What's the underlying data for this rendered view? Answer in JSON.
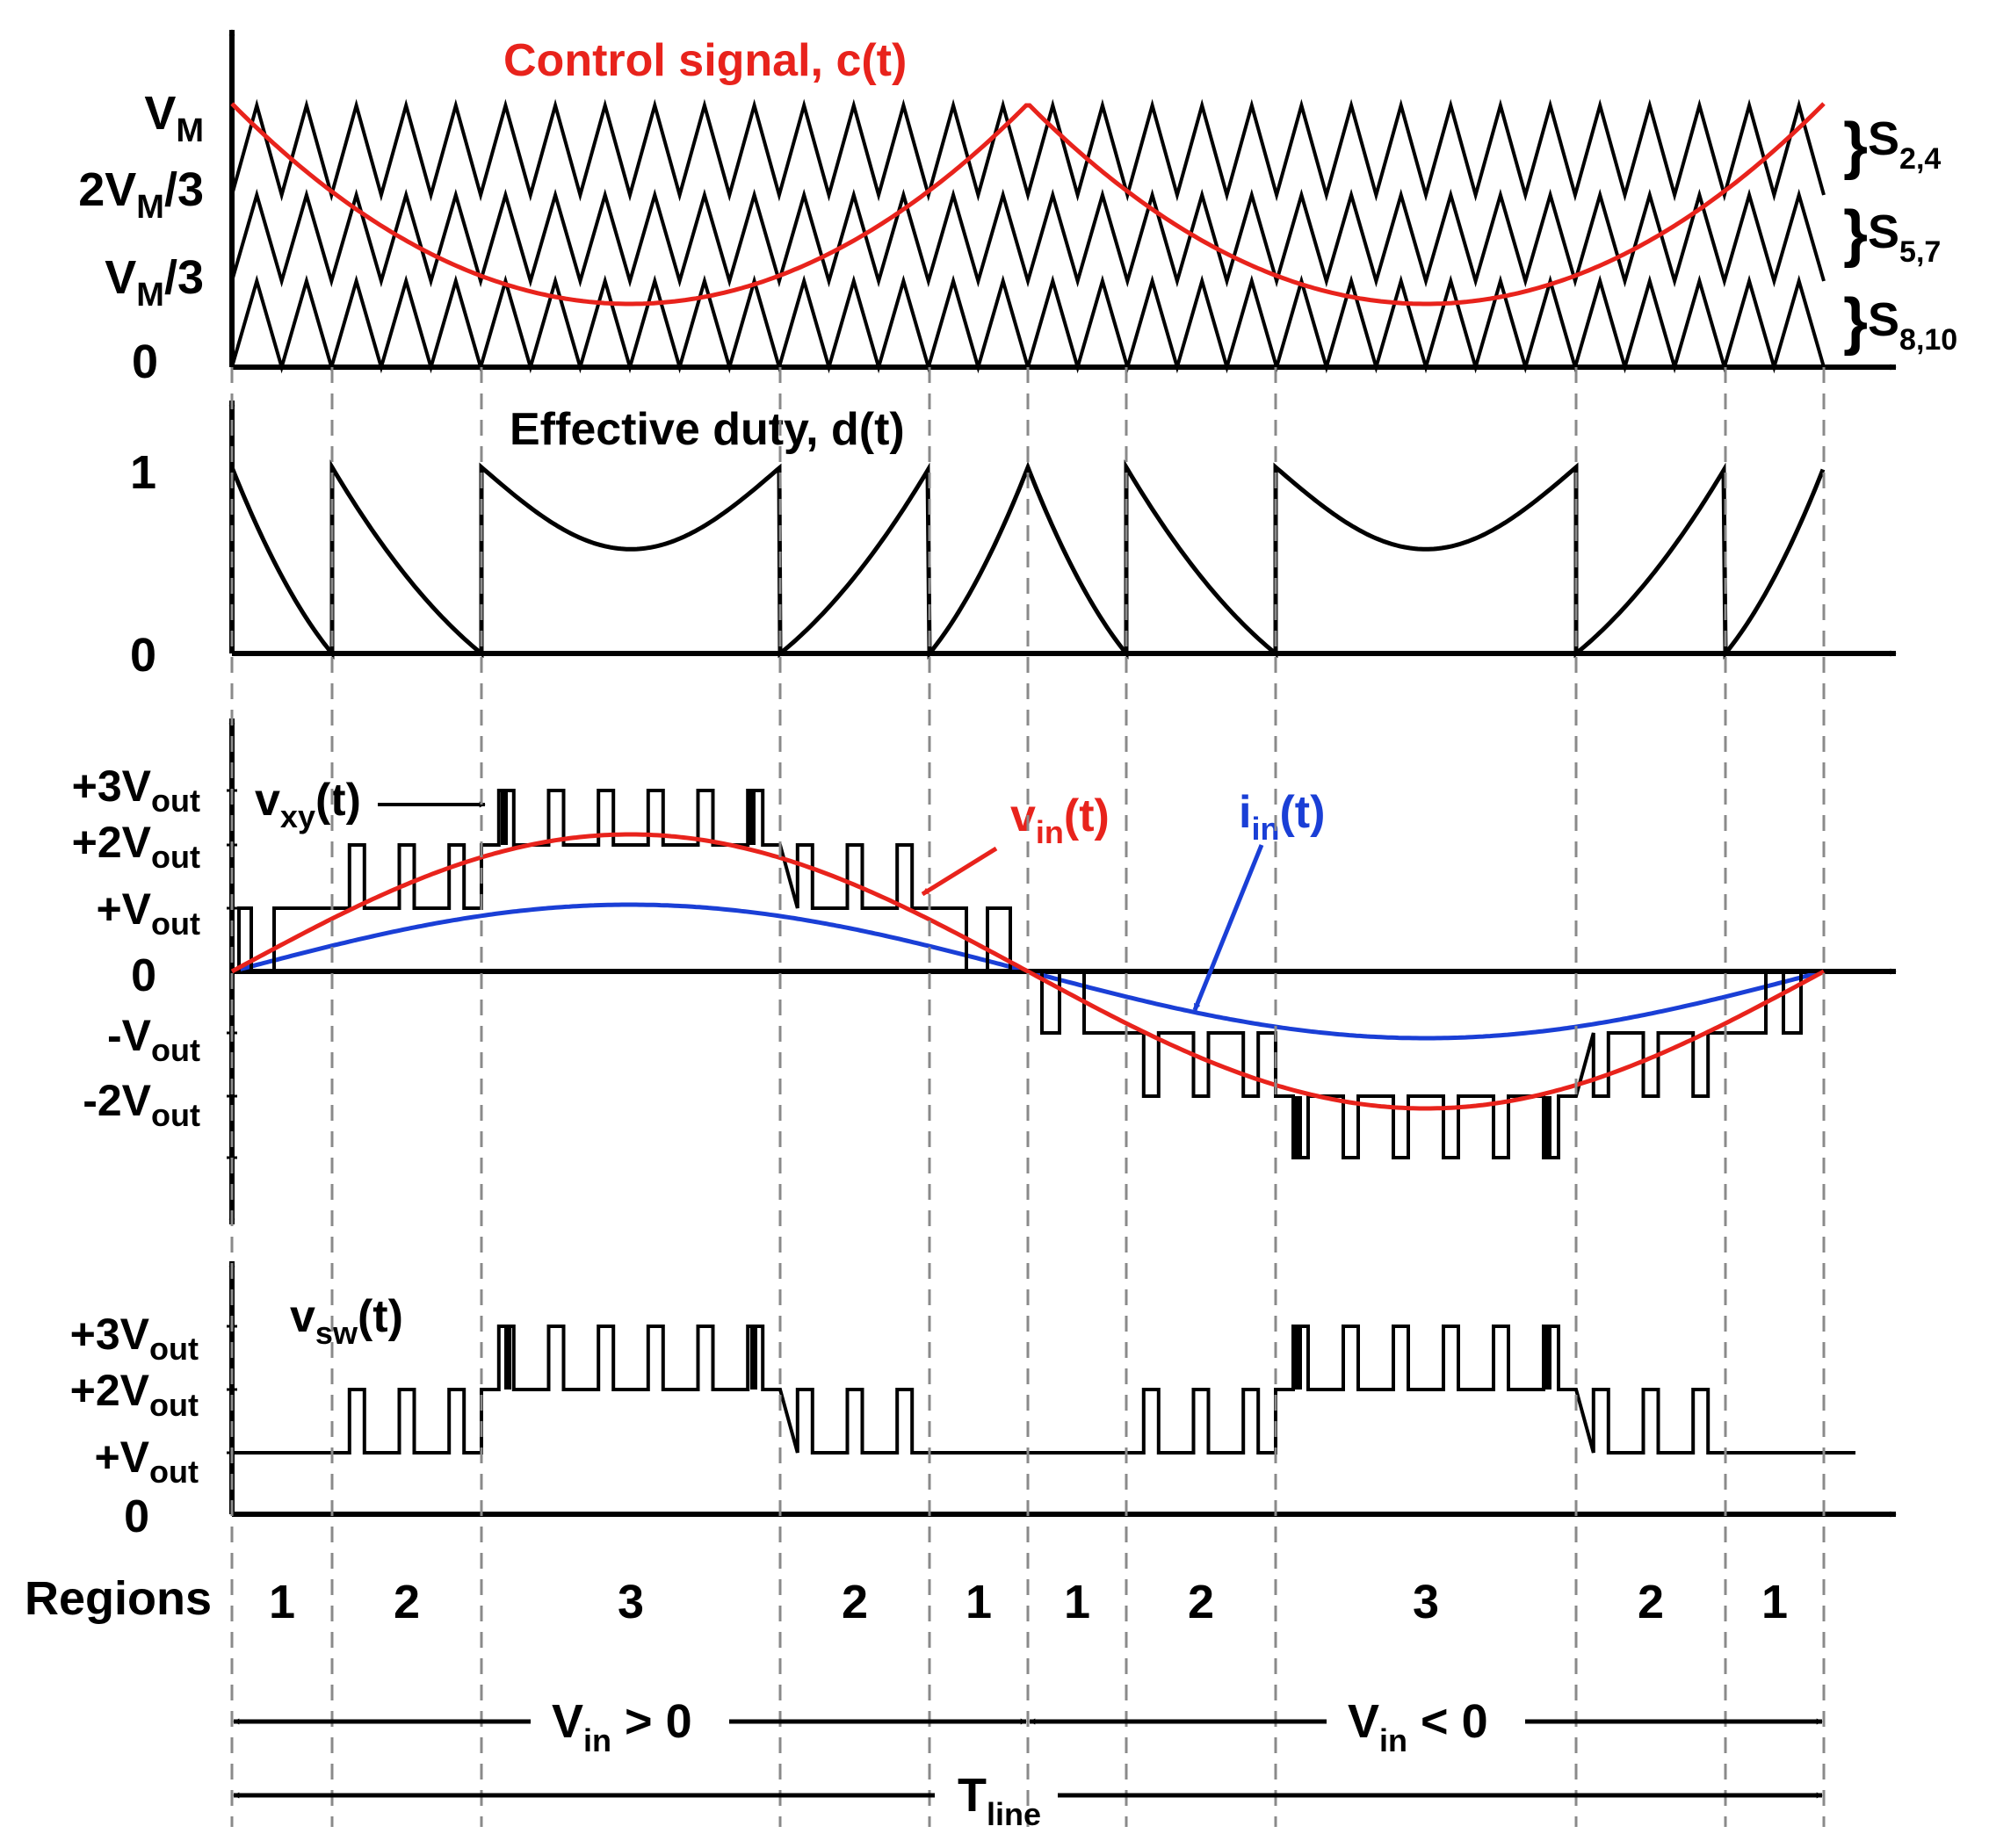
{
  "colors": {
    "ink": "#000000",
    "control": "#e8231c",
    "vin": "#e8231c",
    "iin": "#1a3fd6",
    "guide": "#8a8a8a"
  },
  "carrier": {
    "labels": {
      "vm_base": "V",
      "vm_sub": "M",
      "two_thirds_base": "2V",
      "two_thirds_sub": "M",
      "two_thirds_tail": "/3",
      "one_third_base": "V",
      "one_third_sub": "M",
      "one_third_tail": "/3",
      "zero": "0"
    },
    "title": "Control signal, c(t)",
    "switch_groups": [
      {
        "base": "S",
        "sub": "2,4"
      },
      {
        "base": "S",
        "sub": "5,7"
      },
      {
        "base": "S",
        "sub": "8,10"
      }
    ]
  },
  "duty": {
    "title": "Effective duty, d(t)",
    "tick_one": "1",
    "tick_zero": "0"
  },
  "vxy": {
    "ticks": [
      {
        "base": "+3V",
        "sub": "out"
      },
      {
        "base": "+2V",
        "sub": "out"
      },
      {
        "base": "+V",
        "sub": "out"
      },
      {
        "base": "0",
        "sub": ""
      },
      {
        "base": "-V",
        "sub": "out"
      },
      {
        "base": "-2V",
        "sub": "out"
      }
    ],
    "vxy_label": {
      "base": "v",
      "sub": "xy",
      "tail": "(t)"
    },
    "vin_label": {
      "base": "v",
      "sub": "in",
      "tail": "(t)"
    },
    "iin_label": {
      "base": "i",
      "sub": "in",
      "tail": "(t)"
    }
  },
  "vsw": {
    "ticks": [
      {
        "base": "+3V",
        "sub": "out"
      },
      {
        "base": "+2V",
        "sub": "out"
      },
      {
        "base": "+V",
        "sub": "out"
      },
      {
        "base": "0",
        "sub": ""
      }
    ],
    "label": {
      "base": "v",
      "sub": "sw",
      "tail": "(t)"
    }
  },
  "regions": {
    "title": "Regions",
    "numbers": [
      "1",
      "2",
      "3",
      "2",
      "1",
      "1",
      "2",
      "3",
      "2",
      "1"
    ]
  },
  "intervals": {
    "positive": {
      "base": "V",
      "sub": "in",
      "tail": " > 0"
    },
    "negative": {
      "base": "V",
      "sub": "in",
      "tail": " < 0"
    },
    "period": {
      "base": "T",
      "sub": "line"
    }
  }
}
